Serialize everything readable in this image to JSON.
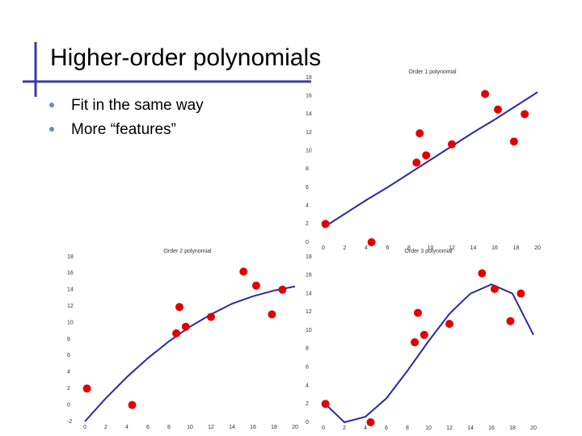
{
  "slide": {
    "title": "Higher-order polynomials",
    "bullets": [
      "Fit in the same way",
      "More “features”"
    ]
  },
  "chart_data": [
    {
      "type": "scatter",
      "title": "Order 1 polynomial",
      "xlim": [
        0,
        20
      ],
      "ylim": [
        0,
        18
      ],
      "xticks": [
        0,
        2,
        4,
        6,
        8,
        10,
        12,
        14,
        16,
        18,
        20
      ],
      "yticks": [
        0,
        2,
        4,
        6,
        8,
        10,
        12,
        14,
        16,
        18
      ],
      "series": [
        {
          "type": "scatter",
          "color": "#e00000",
          "x": [
            0.2,
            4.5,
            8.7,
            9,
            9.6,
            12,
            15.1,
            16.3,
            17.8,
            18.8
          ],
          "values": [
            2,
            0,
            8.7,
            11.9,
            9.5,
            10.7,
            16.2,
            14.5,
            11,
            14
          ]
        },
        {
          "type": "line",
          "color": "#2a2aa0",
          "x": [
            0,
            2,
            4,
            6,
            8,
            10,
            12,
            14,
            16,
            18,
            20
          ],
          "values": [
            1.6,
            3.1,
            4.6,
            6.0,
            7.5,
            9.0,
            10.5,
            12.0,
            13.4,
            14.9,
            16.4
          ]
        }
      ]
    },
    {
      "type": "scatter",
      "title": "Order 2 polynomial",
      "xlim": [
        0,
        20
      ],
      "ylim": [
        -2,
        18
      ],
      "xticks": [
        0,
        2,
        4,
        6,
        8,
        10,
        12,
        14,
        16,
        18,
        20
      ],
      "yticks": [
        -2,
        0,
        2,
        4,
        6,
        8,
        10,
        12,
        14,
        16,
        18
      ],
      "series": [
        {
          "type": "scatter",
          "color": "#e00000",
          "x": [
            0.2,
            4.5,
            8.7,
            9,
            9.6,
            12,
            15.1,
            16.3,
            17.8,
            18.8
          ],
          "values": [
            2,
            0,
            8.7,
            11.9,
            9.5,
            10.7,
            16.2,
            14.5,
            11,
            14
          ]
        },
        {
          "type": "line",
          "color": "#2a2aa0",
          "x": [
            0,
            2,
            4,
            6,
            8,
            10,
            12,
            14,
            16,
            18,
            20
          ],
          "values": [
            -2,
            0.83,
            3.39,
            5.69,
            7.73,
            9.5,
            11.0,
            12.3,
            13.2,
            13.9,
            14.4
          ]
        }
      ]
    },
    {
      "type": "scatter",
      "title": "Order 3 polynomial",
      "xlim": [
        0,
        20
      ],
      "ylim": [
        0,
        18
      ],
      "xticks": [
        0,
        2,
        4,
        6,
        8,
        10,
        12,
        14,
        16,
        18,
        20
      ],
      "yticks": [
        0,
        2,
        4,
        6,
        8,
        10,
        12,
        14,
        16,
        18
      ],
      "series": [
        {
          "type": "scatter",
          "color": "#e00000",
          "x": [
            0.2,
            4.5,
            8.7,
            9,
            9.6,
            12,
            15.1,
            16.3,
            17.8,
            18.8
          ],
          "values": [
            2,
            0,
            8.7,
            11.9,
            9.5,
            10.7,
            16.2,
            14.5,
            11,
            14
          ]
        },
        {
          "type": "line",
          "color": "#2a2aa0",
          "x": [
            0,
            2,
            4,
            6,
            8,
            10,
            12,
            14,
            16,
            18,
            20
          ],
          "values": [
            2.2,
            0.0,
            0.6,
            2.6,
            5.6,
            8.8,
            11.8,
            14.0,
            15.0,
            14.0,
            9.5
          ]
        }
      ]
    }
  ]
}
